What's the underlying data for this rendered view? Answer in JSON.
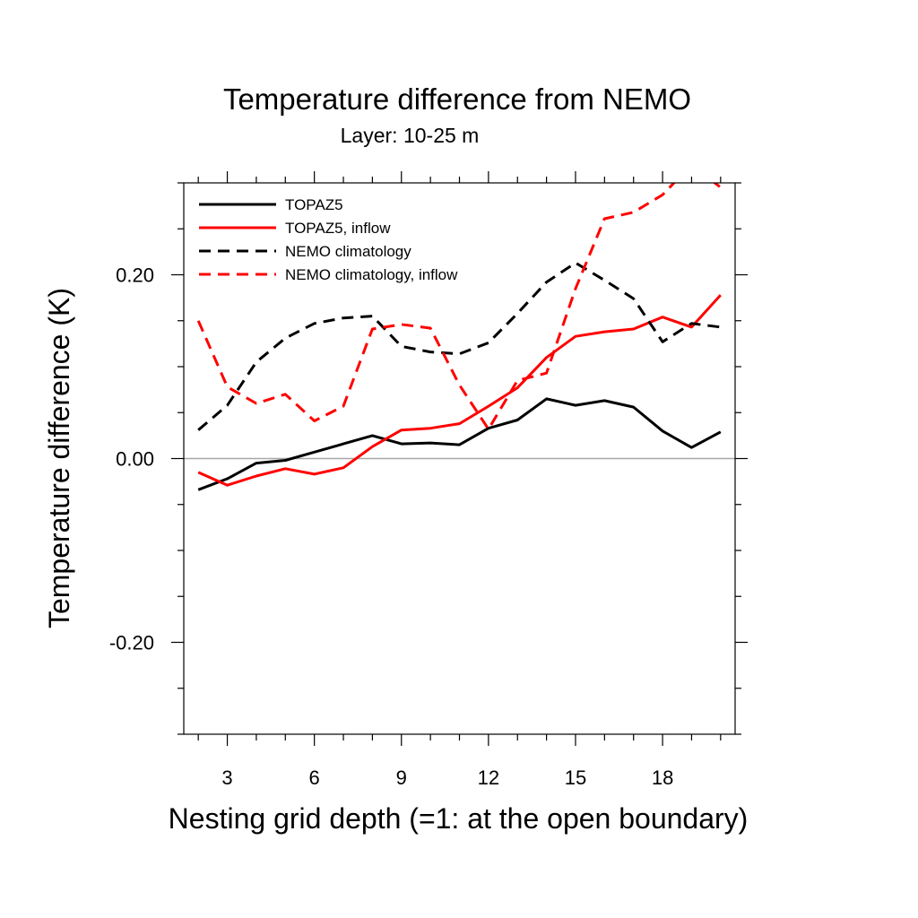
{
  "chart_data": {
    "type": "line",
    "title": "Temperature difference from NEMO",
    "subtitle": "Layer: 10-25 m",
    "xlabel": "Nesting grid depth (=1: at the open boundary)",
    "ylabel": "Temperature difference (K)",
    "xlim": [
      1.5,
      20.5
    ],
    "ylim": [
      -0.3,
      0.3
    ],
    "x_ticks": [
      3,
      6,
      9,
      12,
      15,
      18
    ],
    "x_tick_labels": [
      "3",
      "6",
      "9",
      "12",
      "15",
      "18"
    ],
    "y_ticks": [
      -0.2,
      0.0,
      0.2
    ],
    "y_tick_labels": [
      "-0.20",
      "0.00",
      "0.20"
    ],
    "zero_line": true,
    "grid": false,
    "legend_position": "top-left",
    "x": [
      2,
      3,
      4,
      5,
      6,
      7,
      8,
      9,
      10,
      11,
      12,
      13,
      14,
      15,
      16,
      17,
      18,
      19,
      20
    ],
    "series": [
      {
        "name": "TOPAZ5",
        "color": "#000000",
        "dash": "solid",
        "values": [
          -0.034,
          -0.022,
          -0.005,
          -0.002,
          0.007,
          0.016,
          0.025,
          0.016,
          0.017,
          0.015,
          0.033,
          0.042,
          0.065,
          0.058,
          0.063,
          0.056,
          0.03,
          0.012,
          0.029
        ]
      },
      {
        "name": "TOPAZ5, inflow",
        "color": "#ff0000",
        "dash": "solid",
        "values": [
          -0.015,
          -0.029,
          -0.019,
          -0.011,
          -0.017,
          -0.01,
          0.013,
          0.031,
          0.033,
          0.038,
          0.057,
          0.077,
          0.11,
          0.133,
          0.138,
          0.141,
          0.154,
          0.143,
          0.178
        ]
      },
      {
        "name": "NEMO climatology",
        "color": "#000000",
        "dash": "dashed",
        "values": [
          0.031,
          0.058,
          0.105,
          0.131,
          0.147,
          0.153,
          0.155,
          0.122,
          0.116,
          0.114,
          0.126,
          0.158,
          0.192,
          0.213,
          0.194,
          0.174,
          0.127,
          0.147,
          0.143
        ]
      },
      {
        "name": "NEMO climatology, inflow",
        "color": "#ff0000",
        "dash": "dashed",
        "values": [
          0.15,
          0.078,
          0.06,
          0.07,
          0.041,
          0.057,
          0.141,
          0.146,
          0.142,
          0.08,
          0.032,
          0.085,
          0.093,
          0.185,
          0.261,
          0.268,
          0.287,
          0.32,
          0.295
        ]
      }
    ]
  }
}
